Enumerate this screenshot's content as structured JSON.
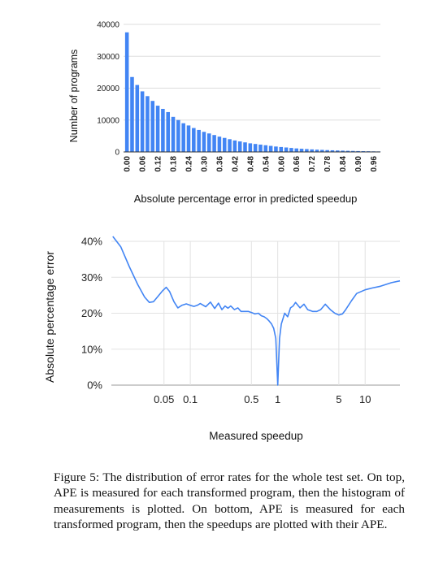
{
  "chart_data": [
    {
      "type": "bar",
      "ylabel": "Number of programs",
      "xlabel": "Absolute percentage error in predicted speedup",
      "ylim": [
        0,
        40000
      ],
      "y_ticks": [
        "0",
        "10000",
        "20000",
        "30000",
        "40000"
      ],
      "x_tick_labels": [
        "0.00",
        "0.06",
        "0.12",
        "0.18",
        "0.24",
        "0.30",
        "0.36",
        "0.42",
        "0.48",
        "0.54",
        "0.60",
        "0.66",
        "0.72",
        "0.78",
        "0.84",
        "0.90",
        "0.96"
      ],
      "bin_width": 0.02,
      "values": [
        37500,
        23500,
        21000,
        19000,
        17500,
        16000,
        14500,
        13500,
        12500,
        11000,
        10000,
        9000,
        8300,
        7500,
        6900,
        6300,
        5800,
        5300,
        4800,
        4400,
        4000,
        3600,
        3300,
        3000,
        2700,
        2500,
        2300,
        2100,
        1900,
        1700,
        1550,
        1400,
        1250,
        1100,
        1000,
        900,
        800,
        720,
        650,
        580,
        520,
        460,
        410,
        360,
        320,
        280,
        250,
        220,
        190,
        160
      ],
      "color": "#4285f4",
      "grid": true
    },
    {
      "type": "line",
      "ylabel": "Absolute percentage error",
      "xlabel": "Measured speedup",
      "x_scale": "log",
      "xlim": [
        0.0125,
        25
      ],
      "ylim": [
        0,
        0.4
      ],
      "x_ticks": [
        0.05,
        0.1,
        0.5,
        1,
        5,
        10
      ],
      "x_tick_labels": [
        "0.05",
        "0.1",
        "0.5",
        "1",
        "5",
        "10"
      ],
      "y_ticks": [
        0,
        0.1,
        0.2,
        0.3,
        0.4
      ],
      "y_tick_labels": [
        "0%",
        "10%",
        "20%",
        "30%",
        "40%"
      ],
      "color": "#4285f4",
      "grid": true,
      "x": [
        0.013,
        0.016,
        0.02,
        0.025,
        0.03,
        0.034,
        0.038,
        0.042,
        0.048,
        0.053,
        0.058,
        0.065,
        0.072,
        0.08,
        0.09,
        0.1,
        0.11,
        0.12,
        0.13,
        0.15,
        0.17,
        0.19,
        0.21,
        0.23,
        0.25,
        0.27,
        0.29,
        0.32,
        0.35,
        0.38,
        0.42,
        0.46,
        0.5,
        0.55,
        0.6,
        0.65,
        0.7,
        0.75,
        0.8,
        0.85,
        0.9,
        0.95,
        1.0,
        1.05,
        1.1,
        1.2,
        1.3,
        1.4,
        1.5,
        1.6,
        1.8,
        2.0,
        2.2,
        2.5,
        2.8,
        3.1,
        3.5,
        4,
        4.5,
        5,
        5.5,
        6,
        7,
        8,
        10,
        12,
        15,
        20,
        25
      ],
      "y": [
        0.42,
        0.385,
        0.33,
        0.28,
        0.245,
        0.23,
        0.232,
        0.245,
        0.262,
        0.272,
        0.26,
        0.232,
        0.215,
        0.222,
        0.226,
        0.222,
        0.219,
        0.222,
        0.227,
        0.218,
        0.231,
        0.213,
        0.228,
        0.21,
        0.22,
        0.214,
        0.22,
        0.21,
        0.215,
        0.205,
        0.205,
        0.205,
        0.202,
        0.198,
        0.2,
        0.193,
        0.19,
        0.185,
        0.178,
        0.17,
        0.158,
        0.13,
        0.0,
        0.13,
        0.17,
        0.2,
        0.19,
        0.215,
        0.22,
        0.23,
        0.215,
        0.225,
        0.21,
        0.205,
        0.205,
        0.21,
        0.225,
        0.21,
        0.2,
        0.195,
        0.198,
        0.21,
        0.235,
        0.255,
        0.265,
        0.27,
        0.275,
        0.285,
        0.29
      ]
    }
  ],
  "caption": "Figure 5: The distribution of error rates for the whole test set. On top, APE is measured for each transformed program, then the histogram of measurements is plotted. On bottom, APE is measured for each transformed program, then the speedups are plotted with their APE."
}
